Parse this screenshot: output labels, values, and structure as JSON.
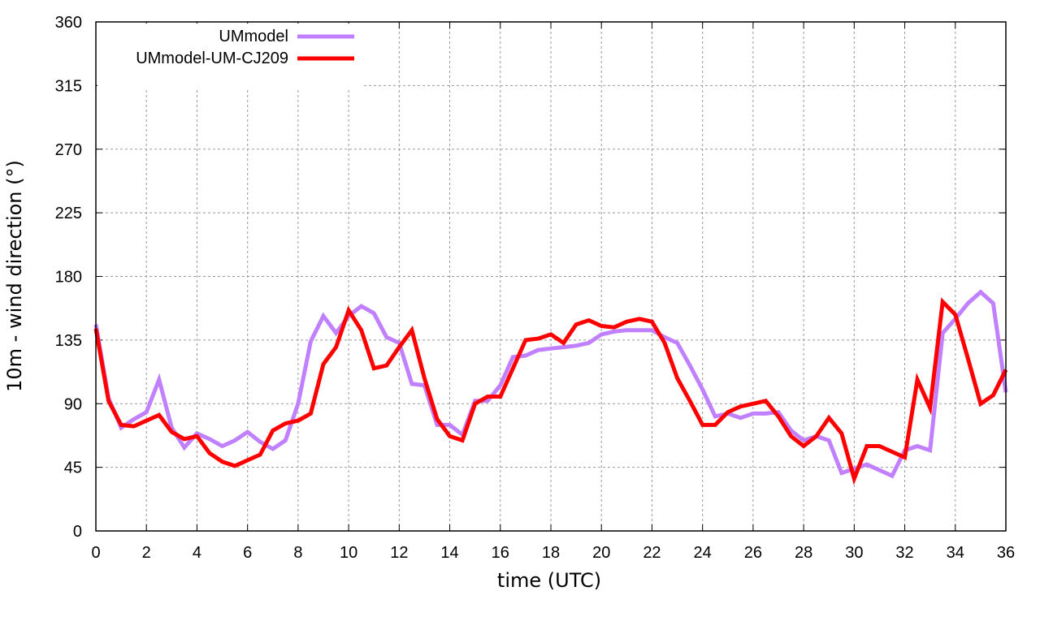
{
  "chart_data": {
    "type": "line",
    "title": "",
    "xlabel": "time (UTC)",
    "ylabel": "10m - wind direction (°)",
    "xlim": [
      0,
      36
    ],
    "ylim": [
      0,
      360
    ],
    "xticks": [
      0,
      2,
      4,
      6,
      8,
      10,
      12,
      14,
      16,
      18,
      20,
      22,
      24,
      26,
      28,
      30,
      32,
      34,
      36
    ],
    "yticks": [
      0,
      45,
      90,
      135,
      180,
      225,
      270,
      315,
      360
    ],
    "grid": true,
    "legend_placement": "top-left",
    "x": [
      0,
      0.5,
      1,
      1.5,
      2,
      2.5,
      3,
      3.5,
      4,
      4.5,
      5,
      5.5,
      6,
      6.5,
      7,
      7.5,
      8,
      8.5,
      9,
      9.5,
      10,
      10.5,
      11,
      11.5,
      12,
      12.5,
      13,
      13.5,
      14,
      14.5,
      15,
      15.5,
      16,
      16.5,
      17,
      17.5,
      18,
      18.5,
      19,
      19.5,
      20,
      20.5,
      21,
      21.5,
      22,
      22.5,
      23,
      23.5,
      24,
      24.5,
      25,
      25.5,
      26,
      26.5,
      27,
      27.5,
      28,
      28.5,
      29,
      29.5,
      30,
      30.5,
      31,
      31.5,
      32,
      32.5,
      33,
      33.5,
      34,
      34.5,
      35,
      35.5,
      36
    ],
    "series": [
      {
        "name": "UMmodel",
        "color": "#c080ff",
        "values": [
          146,
          94,
          73,
          79,
          84,
          107,
          73,
          59,
          69,
          65,
          60,
          64,
          70,
          63,
          58,
          64,
          90,
          134,
          152,
          140,
          152,
          159,
          154,
          137,
          133,
          104,
          103,
          75,
          75,
          68,
          92,
          92,
          103,
          123,
          124,
          128,
          129,
          130,
          131,
          133,
          139,
          141,
          142,
          142,
          142,
          137,
          133,
          117,
          100,
          81,
          83,
          80,
          83,
          83,
          84,
          71,
          64,
          67,
          64,
          41,
          44,
          47,
          43,
          39,
          57,
          60,
          57,
          140,
          150,
          161,
          169,
          161,
          98
        ]
      },
      {
        "name": "UMmodel-UM-CJ209",
        "color": "#ff0000",
        "values": [
          143,
          92,
          75,
          74,
          78,
          82,
          70,
          65,
          67,
          55,
          49,
          46,
          50,
          54,
          71,
          76,
          78,
          83,
          118,
          130,
          156,
          142,
          115,
          117,
          130,
          142,
          108,
          79,
          67,
          64,
          90,
          95,
          95,
          115,
          135,
          136,
          139,
          133,
          146,
          149,
          145,
          144,
          148,
          150,
          148,
          133,
          108,
          92,
          75,
          75,
          84,
          88,
          90,
          92,
          81,
          67,
          60,
          67,
          80,
          69,
          37,
          60,
          60,
          56,
          52,
          107,
          87,
          162,
          153,
          122,
          90,
          96,
          114
        ]
      }
    ]
  }
}
